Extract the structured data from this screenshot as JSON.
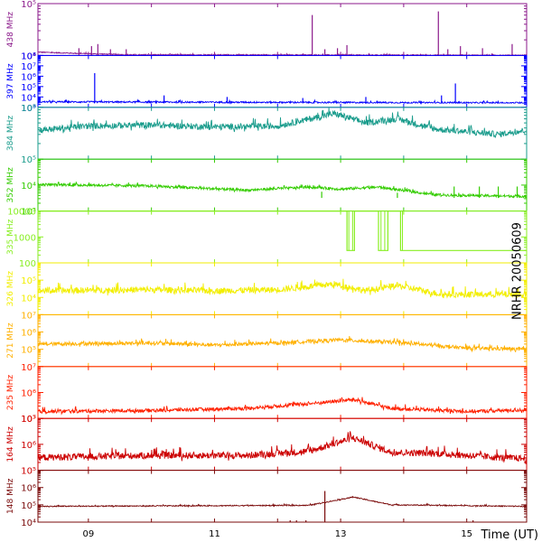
{
  "chart_data": {
    "type": "line",
    "side_title": "NRHR 20050609",
    "xlabel": "Time (UT)",
    "x_range": [
      8.2,
      15.95
    ],
    "x_ticks": [
      9,
      10,
      11,
      12,
      13,
      14,
      15
    ],
    "x_tick_labels": [
      {
        "value": 9,
        "text": "09"
      },
      {
        "value": 11,
        "text": "11"
      },
      {
        "value": 13,
        "text": "13"
      },
      {
        "value": 15,
        "text": "15"
      }
    ],
    "log_scale_y": true,
    "panels": [
      {
        "label": "438 MHz",
        "color": "#8b1a8b",
        "ylim": [
          10000,
          100000
        ],
        "y_ticks": [
          {
            "value": 10000,
            "text": "10⁴"
          },
          {
            "value": 100000,
            "text": "10⁵"
          }
        ],
        "baseline": 10000,
        "noise": 0.02,
        "profile": [
          [
            8.2,
            0.06
          ],
          [
            9.0,
            0.03
          ],
          [
            9.6,
            0.01
          ],
          [
            16.0,
            0.0
          ]
        ],
        "spikes": [
          [
            12.55,
            0.78
          ],
          [
            12.75,
            0.12
          ],
          [
            12.95,
            0.14
          ],
          [
            13.1,
            0.2
          ],
          [
            14.55,
            0.85
          ],
          [
            14.7,
            0.12
          ],
          [
            14.9,
            0.18
          ],
          [
            15.25,
            0.14
          ],
          [
            15.72,
            0.22
          ],
          [
            8.85,
            0.14
          ],
          [
            9.05,
            0.18
          ],
          [
            9.15,
            0.22
          ],
          [
            9.35,
            0.12
          ],
          [
            9.6,
            0.12
          ]
        ]
      },
      {
        "label": "397 MHz",
        "color": "#0000ff",
        "ylim": [
          1000,
          100000000
        ],
        "y_ticks": [
          {
            "value": 1000,
            "text": "10³"
          },
          {
            "value": 10000,
            "text": "10⁴"
          },
          {
            "value": 100000,
            "text": "10⁵"
          },
          {
            "value": 1000000,
            "text": "10⁶"
          },
          {
            "value": 10000000,
            "text": "10⁷"
          },
          {
            "value": 100000000,
            "text": "10⁸"
          }
        ],
        "baseline": 2500,
        "noise": 0.03,
        "profile": [
          [
            8.2,
            0.02
          ],
          [
            16.0,
            0.0
          ]
        ],
        "spikes": [
          [
            9.1,
            0.58
          ],
          [
            14.82,
            0.38
          ],
          [
            10.2,
            0.15
          ],
          [
            11.2,
            0.12
          ],
          [
            12.4,
            0.1
          ],
          [
            13.4,
            0.12
          ],
          [
            14.6,
            0.15
          ]
        ]
      },
      {
        "label": "384 MHz",
        "color": "#1a9c8c",
        "ylim": [
          100000,
          1000000
        ],
        "y_ticks": [
          {
            "value": 100000,
            "text": "10⁵"
          },
          {
            "value": 1000000,
            "text": "10⁶"
          }
        ],
        "baseline": 180000,
        "noise": 0.12,
        "profile": [
          [
            8.2,
            0.28
          ],
          [
            9.0,
            0.36
          ],
          [
            10.0,
            0.38
          ],
          [
            11.0,
            0.34
          ],
          [
            12.0,
            0.36
          ],
          [
            12.9,
            0.6
          ],
          [
            13.4,
            0.42
          ],
          [
            13.9,
            0.5
          ],
          [
            14.5,
            0.3
          ],
          [
            15.5,
            0.2
          ],
          [
            15.95,
            0.28
          ]
        ],
        "spikes": []
      },
      {
        "label": "352 MHz",
        "color": "#33cc00",
        "ylim": [
          1000,
          100000
        ],
        "y_ticks": [
          {
            "value": 1000,
            "text": "10³"
          },
          {
            "value": 10000,
            "text": "10⁴"
          }
        ],
        "baseline": 3200,
        "noise": 0.05,
        "profile": [
          [
            8.2,
            0.25
          ],
          [
            10.0,
            0.22
          ],
          [
            11.5,
            0.14
          ],
          [
            12.5,
            0.2
          ],
          [
            13.0,
            0.16
          ],
          [
            13.6,
            0.2
          ],
          [
            14.5,
            0.05
          ],
          [
            15.95,
            0.02
          ]
        ],
        "spikes": [
          [
            12.7,
            0.12
          ],
          [
            13.9,
            0.1
          ],
          [
            14.8,
            0.22
          ],
          [
            15.2,
            0.22
          ],
          [
            15.5,
            0.22
          ],
          [
            15.8,
            0.22
          ]
        ]
      },
      {
        "label": "335 MHz",
        "color": "#88ee22",
        "ylim": [
          100,
          10000
        ],
        "y_ticks": [
          {
            "value": 100,
            "text": "100"
          },
          {
            "value": 1000,
            "text": "1000"
          },
          {
            "value": 10000,
            "text": "10000"
          }
        ],
        "baseline": 9000,
        "noise": 0.0,
        "profile": [
          [
            8.2,
            0.0
          ],
          [
            16.0,
            0.0
          ]
        ],
        "spikes": [],
        "step": true
      },
      {
        "label": "326 MHz",
        "color": "#f2ee00",
        "ylim": [
          1000,
          1000000
        ],
        "y_ticks": [
          {
            "value": 10000,
            "text": "10⁴"
          },
          {
            "value": 100000,
            "text": "10⁵"
          }
        ],
        "baseline": 9000,
        "noise": 0.12,
        "profile": [
          [
            8.2,
            0.12
          ],
          [
            10.0,
            0.14
          ],
          [
            11.0,
            0.12
          ],
          [
            12.0,
            0.14
          ],
          [
            12.9,
            0.25
          ],
          [
            13.4,
            0.12
          ],
          [
            13.9,
            0.22
          ],
          [
            14.6,
            0.05
          ],
          [
            15.95,
            0.05
          ]
        ],
        "spikes": []
      },
      {
        "label": "271 MHz",
        "color": "#ffb000",
        "ylim": [
          10000,
          10000000
        ],
        "y_ticks": [
          {
            "value": 100000,
            "text": "10⁵"
          },
          {
            "value": 1000000,
            "text": "10⁶"
          },
          {
            "value": 10000000,
            "text": "10⁷"
          }
        ],
        "baseline": 40000,
        "noise": 0.07,
        "profile": [
          [
            8.2,
            0.22
          ],
          [
            10.0,
            0.24
          ],
          [
            11.0,
            0.2
          ],
          [
            12.0,
            0.24
          ],
          [
            13.0,
            0.3
          ],
          [
            14.0,
            0.24
          ],
          [
            15.0,
            0.14
          ],
          [
            15.95,
            0.12
          ]
        ],
        "spikes": []
      },
      {
        "label": "235 MHz",
        "color": "#ff2000",
        "ylim": [
          100000,
          10000000
        ],
        "y_ticks": [
          {
            "value": 100000,
            "text": "10⁵"
          },
          {
            "value": 1000000,
            "text": "10⁶"
          },
          {
            "value": 10000000,
            "text": "10⁷"
          }
        ],
        "baseline": 100000,
        "noise": 0.07,
        "profile": [
          [
            8.2,
            0.12
          ],
          [
            10.0,
            0.14
          ],
          [
            11.5,
            0.18
          ],
          [
            12.6,
            0.28
          ],
          [
            13.2,
            0.35
          ],
          [
            13.8,
            0.18
          ],
          [
            15.0,
            0.12
          ],
          [
            15.95,
            0.15
          ]
        ],
        "spikes": []
      },
      {
        "label": "164 MHz",
        "color": "#cc0000",
        "ylim": [
          100000,
          10000000
        ],
        "y_ticks": [
          {
            "value": 100000,
            "text": "10⁵"
          },
          {
            "value": 1000000,
            "text": "10⁶"
          },
          {
            "value": 10000000,
            "text": "10⁷"
          }
        ],
        "baseline": 100000,
        "noise": 0.13,
        "profile": [
          [
            8.2,
            0.22
          ],
          [
            10.0,
            0.26
          ],
          [
            11.5,
            0.26
          ],
          [
            12.5,
            0.34
          ],
          [
            13.2,
            0.6
          ],
          [
            13.8,
            0.32
          ],
          [
            14.5,
            0.3
          ],
          [
            15.5,
            0.22
          ],
          [
            15.95,
            0.2
          ]
        ],
        "spikes": []
      },
      {
        "label": "148 MHz",
        "color": "#7a0a0a",
        "ylim": [
          10000,
          10000000
        ],
        "y_ticks": [
          {
            "value": 10000,
            "text": "10⁴"
          },
          {
            "value": 100000,
            "text": "10⁵"
          },
          {
            "value": 1000000,
            "text": "10⁶"
          }
        ],
        "baseline": 10000,
        "noise": 0.02,
        "profile": [
          [
            8.2,
            0.3
          ],
          [
            12.5,
            0.32
          ],
          [
            13.2,
            0.48
          ],
          [
            13.8,
            0.33
          ],
          [
            15.95,
            0.3
          ]
        ],
        "spikes": [
          [
            12.75,
            0.6
          ]
        ],
        "dips": [
          [
            12.2,
            0.0
          ],
          [
            12.3,
            0.0
          ],
          [
            12.45,
            0.0
          ],
          [
            15.1,
            0.0
          ]
        ]
      }
    ],
    "step_segments_335": [
      [
        8.2,
        10000
      ],
      [
        13.1,
        10000
      ],
      [
        13.1,
        300
      ],
      [
        13.22,
        300
      ],
      [
        13.22,
        10000
      ],
      [
        13.6,
        10000
      ],
      [
        13.6,
        300
      ],
      [
        13.75,
        300
      ],
      [
        13.75,
        10000
      ],
      [
        13.95,
        10000
      ],
      [
        13.95,
        300
      ],
      [
        15.95,
        300
      ]
    ]
  }
}
